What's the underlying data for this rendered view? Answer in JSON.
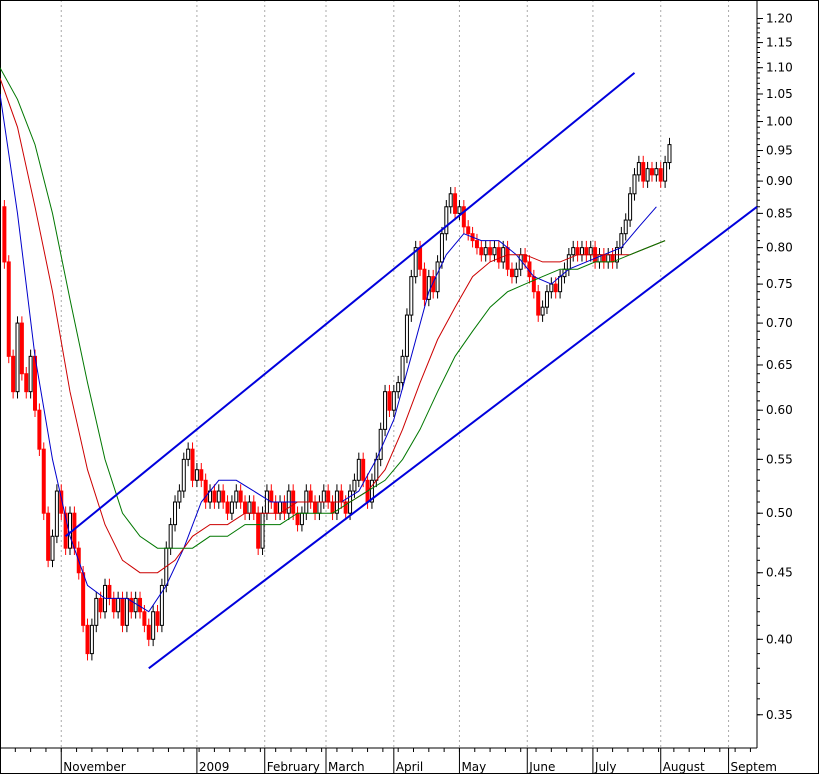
{
  "chart_data": {
    "type": "line",
    "scale": "log",
    "ylim": [
      0.33,
      1.24
    ],
    "y_ticks": [
      1.2,
      1.15,
      1.1,
      1.05,
      1.0,
      0.95,
      0.9,
      0.85,
      0.8,
      0.75,
      0.7,
      0.65,
      0.6,
      0.55,
      0.5,
      0.45,
      0.4,
      0.35
    ],
    "y_tick_labels": [
      "1.20",
      "1.15",
      "1.10",
      "1.05",
      "1.00",
      "0.95",
      "0.90",
      "0.85",
      "0.80",
      "0.75",
      "0.70",
      "0.65",
      "0.60",
      "0.55",
      "0.50",
      "0.45",
      "0.40",
      "0.35"
    ],
    "x_labels": [
      {
        "label": "November",
        "day": 0
      },
      {
        "label": "2009",
        "day": 62
      },
      {
        "label": "February",
        "day": 93
      },
      {
        "label": "March",
        "day": 121
      },
      {
        "label": "April",
        "day": 152
      },
      {
        "label": "May",
        "day": 182
      },
      {
        "label": "June",
        "day": 213
      },
      {
        "label": "July",
        "day": 243
      },
      {
        "label": "August",
        "day": 274
      },
      {
        "label": "Septem",
        "day": 305
      }
    ],
    "x_range_days": [
      -28,
      318
    ],
    "grid": "vertical dashed at month starts",
    "candle_colors": {
      "up": "#000000",
      "down": "#ff0000"
    },
    "price_path": [
      [
        -28,
        0.86
      ],
      [
        -26,
        0.78
      ],
      [
        -24,
        0.66
      ],
      [
        -22,
        0.62
      ],
      [
        -20,
        0.7
      ],
      [
        -18,
        0.64
      ],
      [
        -16,
        0.62
      ],
      [
        -14,
        0.66
      ],
      [
        -12,
        0.6
      ],
      [
        -10,
        0.56
      ],
      [
        -8,
        0.5
      ],
      [
        -6,
        0.46
      ],
      [
        -4,
        0.48
      ],
      [
        -2,
        0.52
      ],
      [
        0,
        0.5
      ],
      [
        2,
        0.47
      ],
      [
        4,
        0.5
      ],
      [
        6,
        0.47
      ],
      [
        8,
        0.45
      ],
      [
        10,
        0.41
      ],
      [
        12,
        0.39
      ],
      [
        14,
        0.41
      ],
      [
        16,
        0.43
      ],
      [
        18,
        0.42
      ],
      [
        20,
        0.44
      ],
      [
        22,
        0.43
      ],
      [
        24,
        0.42
      ],
      [
        26,
        0.43
      ],
      [
        28,
        0.41
      ],
      [
        30,
        0.43
      ],
      [
        32,
        0.42
      ],
      [
        34,
        0.43
      ],
      [
        36,
        0.42
      ],
      [
        38,
        0.41
      ],
      [
        40,
        0.4
      ],
      [
        42,
        0.42
      ],
      [
        44,
        0.41
      ],
      [
        46,
        0.44
      ],
      [
        48,
        0.47
      ],
      [
        50,
        0.49
      ],
      [
        52,
        0.51
      ],
      [
        54,
        0.52
      ],
      [
        56,
        0.55
      ],
      [
        58,
        0.56
      ],
      [
        60,
        0.53
      ],
      [
        62,
        0.54
      ],
      [
        64,
        0.53
      ],
      [
        66,
        0.51
      ],
      [
        68,
        0.52
      ],
      [
        70,
        0.51
      ],
      [
        72,
        0.52
      ],
      [
        74,
        0.51
      ],
      [
        76,
        0.5
      ],
      [
        78,
        0.51
      ],
      [
        80,
        0.52
      ],
      [
        82,
        0.51
      ],
      [
        84,
        0.5
      ],
      [
        86,
        0.51
      ],
      [
        88,
        0.5
      ],
      [
        90,
        0.47
      ],
      [
        92,
        0.5
      ],
      [
        94,
        0.52
      ],
      [
        96,
        0.51
      ],
      [
        98,
        0.5
      ],
      [
        100,
        0.51
      ],
      [
        102,
        0.5
      ],
      [
        104,
        0.52
      ],
      [
        106,
        0.5
      ],
      [
        108,
        0.49
      ],
      [
        110,
        0.5
      ],
      [
        112,
        0.52
      ],
      [
        114,
        0.51
      ],
      [
        116,
        0.5
      ],
      [
        118,
        0.51
      ],
      [
        120,
        0.52
      ],
      [
        122,
        0.51
      ],
      [
        124,
        0.5
      ],
      [
        126,
        0.52
      ],
      [
        128,
        0.51
      ],
      [
        130,
        0.5
      ],
      [
        132,
        0.52
      ],
      [
        134,
        0.53
      ],
      [
        136,
        0.55
      ],
      [
        138,
        0.53
      ],
      [
        140,
        0.51
      ],
      [
        142,
        0.53
      ],
      [
        144,
        0.55
      ],
      [
        146,
        0.58
      ],
      [
        148,
        0.62
      ],
      [
        150,
        0.6
      ],
      [
        152,
        0.62
      ],
      [
        154,
        0.63
      ],
      [
        156,
        0.66
      ],
      [
        158,
        0.71
      ],
      [
        160,
        0.76
      ],
      [
        162,
        0.8
      ],
      [
        164,
        0.77
      ],
      [
        166,
        0.73
      ],
      [
        168,
        0.76
      ],
      [
        170,
        0.74
      ],
      [
        172,
        0.78
      ],
      [
        174,
        0.82
      ],
      [
        176,
        0.86
      ],
      [
        178,
        0.88
      ],
      [
        180,
        0.85
      ],
      [
        182,
        0.86
      ],
      [
        184,
        0.83
      ],
      [
        186,
        0.82
      ],
      [
        188,
        0.81
      ],
      [
        190,
        0.8
      ],
      [
        192,
        0.79
      ],
      [
        194,
        0.8
      ],
      [
        196,
        0.79
      ],
      [
        198,
        0.8
      ],
      [
        200,
        0.78
      ],
      [
        202,
        0.8
      ],
      [
        204,
        0.77
      ],
      [
        206,
        0.76
      ],
      [
        208,
        0.77
      ],
      [
        210,
        0.79
      ],
      [
        212,
        0.78
      ],
      [
        214,
        0.76
      ],
      [
        216,
        0.74
      ],
      [
        218,
        0.71
      ],
      [
        220,
        0.72
      ],
      [
        222,
        0.74
      ],
      [
        224,
        0.75
      ],
      [
        226,
        0.74
      ],
      [
        228,
        0.76
      ],
      [
        230,
        0.77
      ],
      [
        232,
        0.79
      ],
      [
        234,
        0.8
      ],
      [
        236,
        0.79
      ],
      [
        238,
        0.8
      ],
      [
        240,
        0.79
      ],
      [
        242,
        0.8
      ],
      [
        244,
        0.78
      ],
      [
        246,
        0.79
      ],
      [
        248,
        0.78
      ],
      [
        250,
        0.79
      ],
      [
        252,
        0.78
      ],
      [
        254,
        0.8
      ],
      [
        256,
        0.82
      ],
      [
        258,
        0.84
      ],
      [
        260,
        0.88
      ],
      [
        262,
        0.91
      ],
      [
        264,
        0.93
      ],
      [
        266,
        0.9
      ],
      [
        268,
        0.92
      ],
      [
        270,
        0.91
      ],
      [
        272,
        0.92
      ],
      [
        274,
        0.9
      ],
      [
        276,
        0.93
      ],
      [
        278,
        0.96
      ]
    ],
    "moving_averages": [
      {
        "color": "#0000cc",
        "points": [
          [
            -28,
            1.05
          ],
          [
            -20,
            0.85
          ],
          [
            -12,
            0.66
          ],
          [
            -4,
            0.55
          ],
          [
            4,
            0.48
          ],
          [
            12,
            0.44
          ],
          [
            20,
            0.43
          ],
          [
            30,
            0.43
          ],
          [
            40,
            0.42
          ],
          [
            48,
            0.44
          ],
          [
            56,
            0.47
          ],
          [
            64,
            0.51
          ],
          [
            72,
            0.53
          ],
          [
            80,
            0.53
          ],
          [
            88,
            0.52
          ],
          [
            96,
            0.51
          ],
          [
            104,
            0.51
          ],
          [
            112,
            0.51
          ],
          [
            120,
            0.51
          ],
          [
            128,
            0.51
          ],
          [
            136,
            0.52
          ],
          [
            144,
            0.55
          ],
          [
            152,
            0.59
          ],
          [
            160,
            0.66
          ],
          [
            168,
            0.74
          ],
          [
            176,
            0.79
          ],
          [
            184,
            0.82
          ],
          [
            192,
            0.81
          ],
          [
            200,
            0.81
          ],
          [
            208,
            0.79
          ],
          [
            216,
            0.76
          ],
          [
            224,
            0.75
          ],
          [
            232,
            0.77
          ],
          [
            240,
            0.78
          ],
          [
            248,
            0.79
          ],
          [
            256,
            0.8
          ],
          [
            264,
            0.83
          ],
          [
            272,
            0.86
          ]
        ]
      },
      {
        "color": "#cc0000",
        "points": [
          [
            -28,
            1.08
          ],
          [
            -20,
            0.99
          ],
          [
            -12,
            0.86
          ],
          [
            -4,
            0.74
          ],
          [
            4,
            0.62
          ],
          [
            12,
            0.54
          ],
          [
            20,
            0.49
          ],
          [
            28,
            0.46
          ],
          [
            36,
            0.45
          ],
          [
            44,
            0.45
          ],
          [
            52,
            0.46
          ],
          [
            60,
            0.48
          ],
          [
            68,
            0.49
          ],
          [
            76,
            0.49
          ],
          [
            84,
            0.5
          ],
          [
            92,
            0.5
          ],
          [
            100,
            0.5
          ],
          [
            108,
            0.51
          ],
          [
            116,
            0.51
          ],
          [
            124,
            0.51
          ],
          [
            132,
            0.51
          ],
          [
            140,
            0.52
          ],
          [
            148,
            0.54
          ],
          [
            156,
            0.58
          ],
          [
            164,
            0.63
          ],
          [
            172,
            0.68
          ],
          [
            180,
            0.72
          ],
          [
            188,
            0.76
          ],
          [
            196,
            0.78
          ],
          [
            204,
            0.79
          ],
          [
            212,
            0.79
          ],
          [
            220,
            0.78
          ],
          [
            228,
            0.78
          ],
          [
            236,
            0.79
          ],
          [
            244,
            0.79
          ],
          [
            252,
            0.79
          ],
          [
            260,
            0.79
          ],
          [
            268,
            0.8
          ],
          [
            276,
            0.81
          ]
        ]
      },
      {
        "color": "#007700",
        "points": [
          [
            -28,
            1.1
          ],
          [
            -20,
            1.04
          ],
          [
            -12,
            0.96
          ],
          [
            -4,
            0.85
          ],
          [
            4,
            0.73
          ],
          [
            12,
            0.63
          ],
          [
            20,
            0.55
          ],
          [
            28,
            0.5
          ],
          [
            36,
            0.48
          ],
          [
            44,
            0.47
          ],
          [
            52,
            0.47
          ],
          [
            60,
            0.47
          ],
          [
            68,
            0.48
          ],
          [
            76,
            0.48
          ],
          [
            84,
            0.49
          ],
          [
            92,
            0.49
          ],
          [
            100,
            0.49
          ],
          [
            108,
            0.5
          ],
          [
            116,
            0.5
          ],
          [
            124,
            0.5
          ],
          [
            132,
            0.51
          ],
          [
            140,
            0.52
          ],
          [
            148,
            0.53
          ],
          [
            156,
            0.55
          ],
          [
            164,
            0.58
          ],
          [
            172,
            0.62
          ],
          [
            180,
            0.66
          ],
          [
            188,
            0.69
          ],
          [
            196,
            0.72
          ],
          [
            204,
            0.74
          ],
          [
            212,
            0.75
          ],
          [
            220,
            0.76
          ],
          [
            228,
            0.77
          ],
          [
            236,
            0.77
          ],
          [
            244,
            0.78
          ],
          [
            252,
            0.78
          ],
          [
            260,
            0.79
          ],
          [
            268,
            0.8
          ],
          [
            276,
            0.81
          ]
        ]
      }
    ],
    "trend_channel": {
      "color": "#0000dd",
      "lines": [
        {
          "from": [
            2,
            0.48
          ],
          "to": [
            262,
            1.09
          ]
        },
        {
          "from": [
            40,
            0.38
          ],
          "to": [
            318,
            0.86
          ]
        }
      ]
    }
  }
}
